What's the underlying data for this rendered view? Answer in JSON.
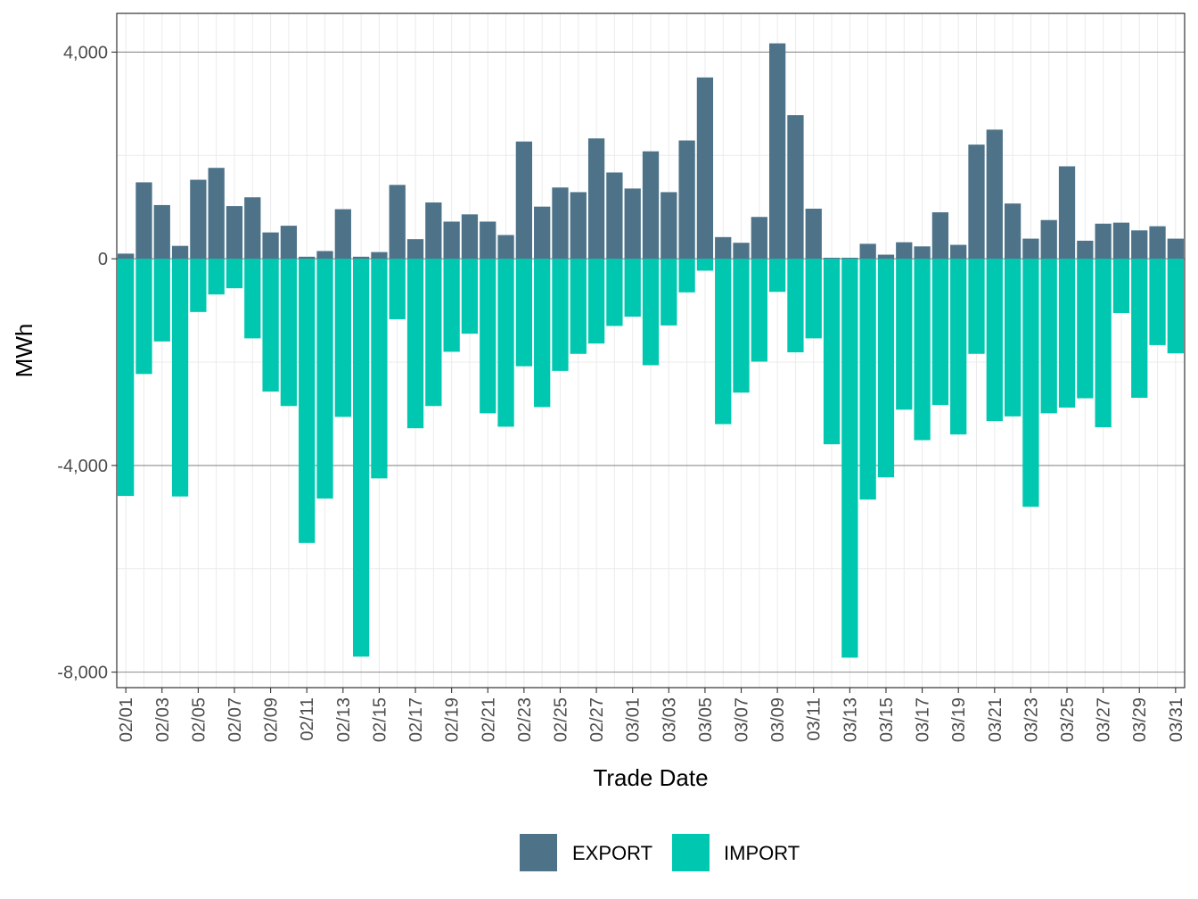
{
  "chart_data": {
    "type": "bar",
    "title": "",
    "xlabel": "Trade Date",
    "ylabel": "MWh",
    "ylim": [
      -8300,
      4750
    ],
    "y_ticks": [
      4000,
      0,
      -4000,
      -8000
    ],
    "y_tick_labels": [
      "4,000",
      "0",
      "-4,000",
      "-8,000"
    ],
    "x_tick_labels": [
      "02/01",
      "02/03",
      "02/05",
      "02/07",
      "02/09",
      "02/11",
      "02/13",
      "02/15",
      "02/17",
      "02/19",
      "02/21",
      "02/23",
      "02/25",
      "02/27",
      "03/01",
      "03/03",
      "03/05",
      "03/07",
      "03/09",
      "03/11",
      "03/13",
      "03/15",
      "03/17",
      "03/19",
      "03/21",
      "03/23",
      "03/25",
      "03/27",
      "03/29",
      "03/31"
    ],
    "categories": [
      "02/01",
      "02/02",
      "02/03",
      "02/04",
      "02/05",
      "02/06",
      "02/07",
      "02/08",
      "02/09",
      "02/10",
      "02/11",
      "02/12",
      "02/13",
      "02/14",
      "02/15",
      "02/16",
      "02/17",
      "02/18",
      "02/19",
      "02/20",
      "02/21",
      "02/22",
      "02/23",
      "02/24",
      "02/25",
      "02/26",
      "02/27",
      "02/28",
      "03/01",
      "03/02",
      "03/03",
      "03/04",
      "03/05",
      "03/06",
      "03/07",
      "03/08",
      "03/09",
      "03/10",
      "03/11",
      "03/12",
      "03/13",
      "03/14",
      "03/15",
      "03/16",
      "03/17",
      "03/18",
      "03/19",
      "03/20",
      "03/21",
      "03/22",
      "03/23",
      "03/24",
      "03/25",
      "03/26",
      "03/27",
      "03/28",
      "03/29",
      "03/30",
      "03/31"
    ],
    "series": [
      {
        "name": "EXPORT",
        "color": "#4e7389",
        "values": [
          100,
          1480,
          1040,
          250,
          1530,
          1760,
          1020,
          1190,
          510,
          640,
          40,
          150,
          960,
          40,
          130,
          1430,
          380,
          1090,
          720,
          860,
          720,
          460,
          2270,
          1010,
          1380,
          1290,
          2330,
          1670,
          1360,
          2080,
          1290,
          2290,
          3510,
          420,
          310,
          810,
          4170,
          2780,
          970,
          20,
          20,
          290,
          80,
          320,
          240,
          900,
          270,
          2210,
          2500,
          1070,
          390,
          750,
          1790,
          350,
          680,
          700,
          550,
          630,
          390
        ]
      },
      {
        "name": "IMPORT",
        "color": "#00c8b0",
        "values": [
          -4590,
          -2230,
          -1600,
          -4600,
          -1030,
          -690,
          -570,
          -1540,
          -2570,
          -2850,
          -5500,
          -4640,
          -3060,
          -7700,
          -4250,
          -1170,
          -3280,
          -2850,
          -1800,
          -1450,
          -2990,
          -3250,
          -2080,
          -2870,
          -2170,
          -1840,
          -1640,
          -1300,
          -1120,
          -2060,
          -1290,
          -650,
          -230,
          -3200,
          -2590,
          -1990,
          -640,
          -1810,
          -1540,
          -3590,
          -7720,
          -4660,
          -4230,
          -2920,
          -3510,
          -2830,
          -3400,
          -1840,
          -3140,
          -3050,
          -4800,
          -2990,
          -2880,
          -2700,
          -3260,
          -1050,
          -2690,
          -1670,
          -1830
        ]
      }
    ],
    "legend": [
      {
        "label": "EXPORT",
        "color": "#4e7389"
      },
      {
        "label": "IMPORT",
        "color": "#00c8b0"
      }
    ],
    "legend_position": "bottom",
    "grid": true
  }
}
